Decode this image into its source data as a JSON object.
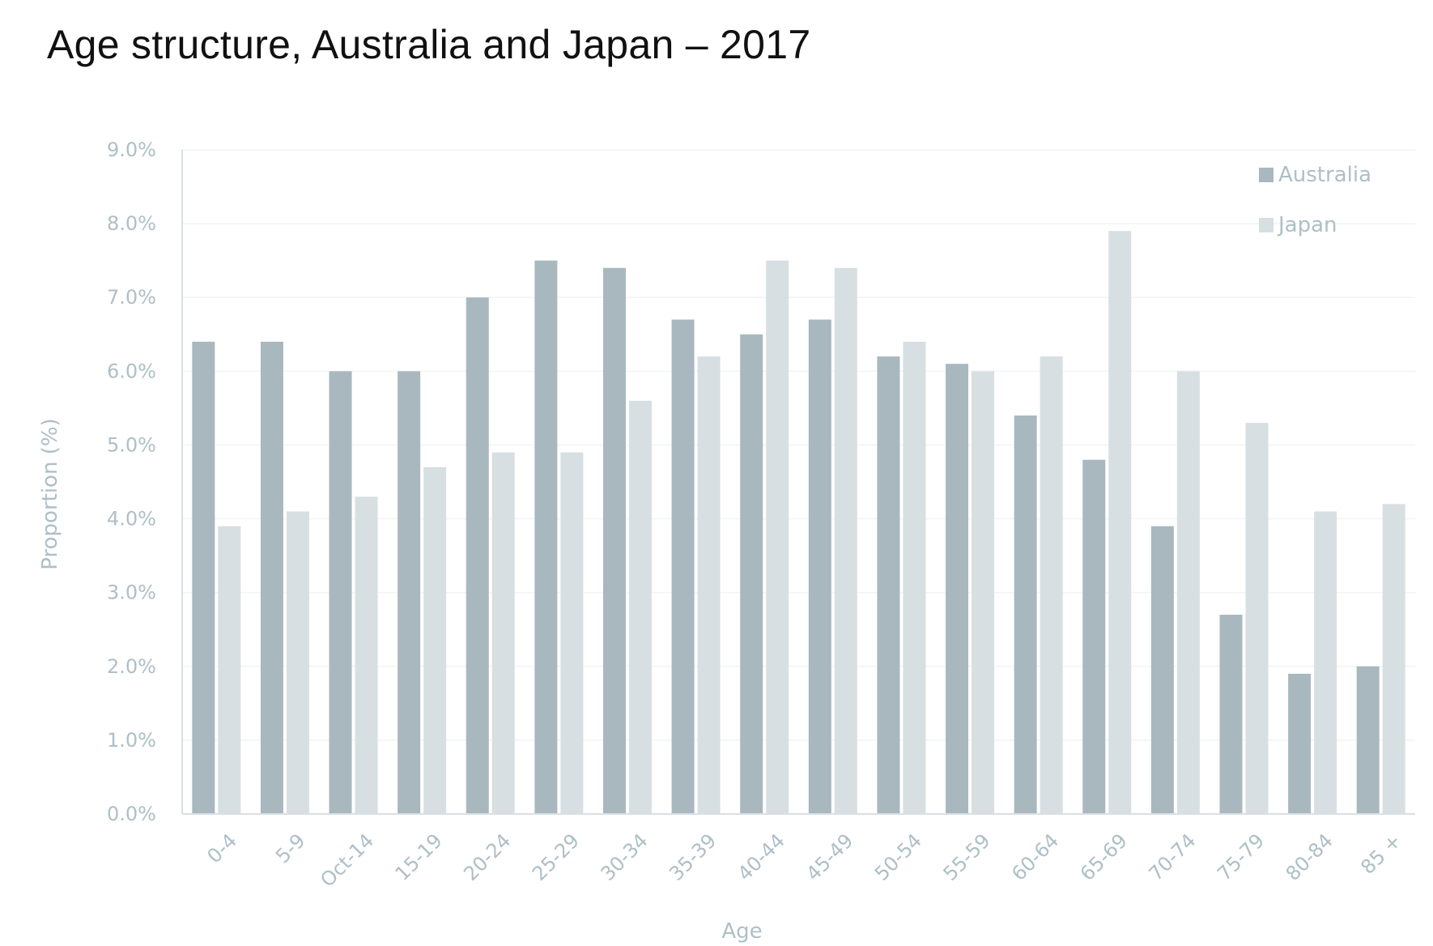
{
  "chart_data": {
    "type": "bar",
    "title": "Age structure, Australia and Japan – 2017",
    "xlabel": "Age",
    "ylabel": "Proportion (%)",
    "ylim": [
      0,
      9
    ],
    "y_tick_labels": [
      "0.0%",
      "1.0%",
      "2.0%",
      "3.0%",
      "4.0%",
      "5.0%",
      "6.0%",
      "7.0%",
      "8.0%",
      "9.0%"
    ],
    "y_ticks": [
      0,
      1,
      2,
      3,
      4,
      5,
      6,
      7,
      8,
      9
    ],
    "categories": [
      "0-4",
      "5-9",
      "Oct-14",
      "15-19",
      "20-24",
      "25-29",
      "30-34",
      "35-39",
      "40-44",
      "45-49",
      "50-54",
      "55-59",
      "60-64",
      "65-69",
      "70-74",
      "75-79",
      "80-84",
      "85 +"
    ],
    "series": [
      {
        "name": "Australia",
        "color": "#a9b8bf",
        "values": [
          6.4,
          6.4,
          6.0,
          6.0,
          7.0,
          7.5,
          7.4,
          6.7,
          6.5,
          6.7,
          6.2,
          6.1,
          5.4,
          4.8,
          3.9,
          2.7,
          1.9,
          2.0
        ]
      },
      {
        "name": "Japan",
        "color": "#d7dfe2",
        "values": [
          3.9,
          4.1,
          4.3,
          4.7,
          4.9,
          4.9,
          5.6,
          6.2,
          7.5,
          7.4,
          6.4,
          6.0,
          6.2,
          7.9,
          6.0,
          5.3,
          4.1,
          4.2
        ]
      }
    ],
    "legend_position": "top-right",
    "grid": true
  }
}
